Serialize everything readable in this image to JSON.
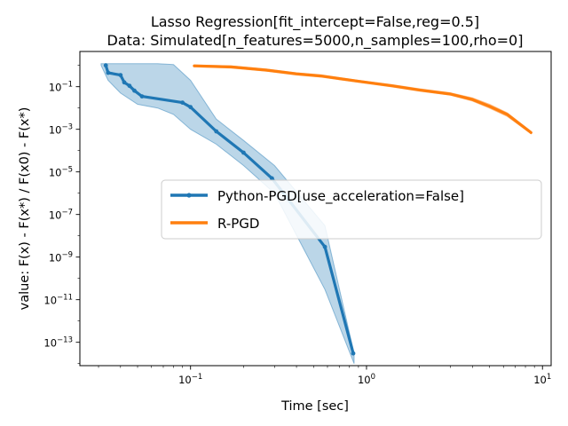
{
  "chart_data": {
    "type": "line",
    "title_lines": [
      "Lasso Regression[fit_intercept=False,reg=0.5]",
      "Data: Simulated[n_features=5000,n_samples=100,rho=0]"
    ],
    "xlabel": "Time [sec]",
    "ylabel": "value: F(x) - F(x*) / F(x0) - F(x*)",
    "xscale": "log",
    "yscale": "log",
    "xlim": [
      0.0235,
      11.2
    ],
    "ylim": [
      8e-15,
      4.5
    ],
    "grid": false,
    "legend_position": "center-right",
    "x_ticks": [
      {
        "value": 0.1,
        "base": "10",
        "exp": "−1"
      },
      {
        "value": 1,
        "base": "10",
        "exp": "0"
      },
      {
        "value": 10,
        "base": "10",
        "exp": "1"
      }
    ],
    "y_ticks": [
      {
        "value": 1e-13,
        "base": "10",
        "exp": "−13"
      },
      {
        "value": 1e-11,
        "base": "10",
        "exp": "−11"
      },
      {
        "value": 1e-09,
        "base": "10",
        "exp": "−9"
      },
      {
        "value": 1e-07,
        "base": "10",
        "exp": "−7"
      },
      {
        "value": 1e-05,
        "base": "10",
        "exp": "−5"
      },
      {
        "value": 0.001,
        "base": "10",
        "exp": "−3"
      },
      {
        "value": 0.1,
        "base": "10",
        "exp": "−1"
      }
    ],
    "series": [
      {
        "name": "Python-PGD[use_acceleration=False]",
        "color": "#1f77b4",
        "marker": "dot",
        "x": [
          0.033,
          0.034,
          0.04,
          0.042,
          0.045,
          0.048,
          0.053,
          0.09,
          0.1,
          0.14,
          0.2,
          0.29,
          0.58,
          0.84
        ],
        "y": [
          1.0,
          0.45,
          0.35,
          0.16,
          0.11,
          0.065,
          0.035,
          0.018,
          0.011,
          0.0008,
          8e-05,
          5e-06,
          3e-09,
          3e-14
        ],
        "band": {
          "x": [
            0.031,
            0.034,
            0.04,
            0.05,
            0.065,
            0.08,
            0.1,
            0.14,
            0.2,
            0.3,
            0.58,
            0.85
          ],
          "upper": [
            1.2,
            1.2,
            1.2,
            1.2,
            1.2,
            1.1,
            0.2,
            0.003,
            0.0003,
            2e-05,
            3e-08,
            3e-14
          ],
          "lower": [
            1.0,
            0.2,
            0.05,
            0.015,
            0.01,
            0.005,
            0.001,
            0.0002,
            2e-05,
            1e-06,
            3e-11,
            1e-14
          ]
        }
      },
      {
        "name": "R-PGD",
        "color": "#ff7f0e",
        "marker": "none",
        "x": [
          0.105,
          0.17,
          0.27,
          0.4,
          0.55,
          0.9,
          1.4,
          2.0,
          3.0,
          4.0,
          5.0,
          6.3,
          8.6
        ],
        "y": [
          0.95,
          0.85,
          0.6,
          0.4,
          0.32,
          0.18,
          0.11,
          0.07,
          0.045,
          0.025,
          0.012,
          0.005,
          0.0007
        ],
        "band": {
          "x": [
            0.105,
            0.17,
            0.27,
            0.4,
            0.55,
            0.9,
            1.4,
            2.0,
            3.0,
            4.0,
            5.0,
            6.3,
            8.6
          ],
          "upper": [
            1.05,
            0.95,
            0.68,
            0.45,
            0.36,
            0.2,
            0.125,
            0.08,
            0.052,
            0.03,
            0.015,
            0.006,
            0.0008
          ],
          "lower": [
            0.85,
            0.75,
            0.53,
            0.35,
            0.28,
            0.16,
            0.097,
            0.062,
            0.04,
            0.021,
            0.0098,
            0.004,
            0.00062
          ]
        }
      }
    ]
  }
}
